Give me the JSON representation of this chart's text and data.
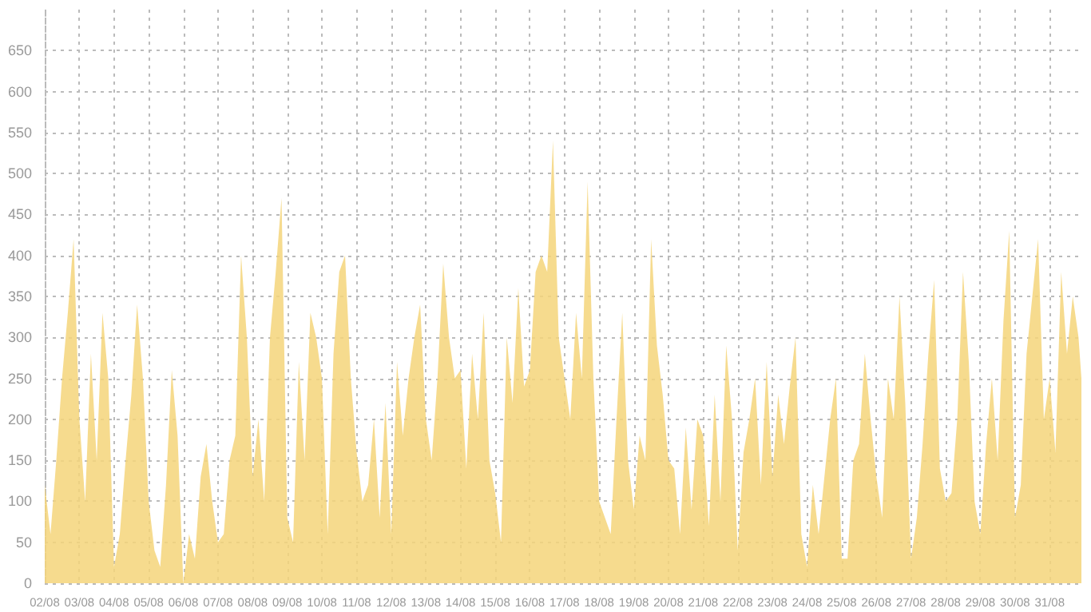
{
  "chart_data": {
    "type": "area",
    "grid": true,
    "marker": "none",
    "xlim": [
      "--08-02T00:00",
      "--08-31T22:00"
    ],
    "xticks": [
      {
        "value": "--08-02",
        "label": "02/08"
      },
      {
        "value": "--08-03",
        "label": "03/08"
      },
      {
        "value": "--08-04",
        "label": "04/08"
      },
      {
        "value": "--08-05",
        "label": "05/08"
      },
      {
        "value": "--08-06",
        "label": "06/08"
      },
      {
        "value": "--08-07",
        "label": "07/08"
      },
      {
        "value": "--08-08",
        "label": "08/08"
      },
      {
        "value": "--08-09",
        "label": "09/08"
      },
      {
        "value": "--08-10",
        "label": "10/08"
      },
      {
        "value": "--08-11",
        "label": "11/08"
      },
      {
        "value": "--08-12",
        "label": "12/08"
      },
      {
        "value": "--08-13",
        "label": "13/08"
      },
      {
        "value": "--08-14",
        "label": "14/08"
      },
      {
        "value": "--08-15",
        "label": "15/08"
      },
      {
        "value": "--08-16",
        "label": "16/08"
      },
      {
        "value": "--08-17",
        "label": "17/08"
      },
      {
        "value": "--08-18",
        "label": "18/08"
      },
      {
        "value": "--08-19",
        "label": "19/08"
      },
      {
        "value": "--08-20",
        "label": "20/08"
      },
      {
        "value": "--08-21",
        "label": "21/08"
      },
      {
        "value": "--08-22",
        "label": "22/08"
      },
      {
        "value": "--08-23",
        "label": "23/08"
      },
      {
        "value": "--08-24",
        "label": "24/08"
      },
      {
        "value": "--08-25",
        "label": "25/08"
      },
      {
        "value": "--08-26",
        "label": "26/08"
      },
      {
        "value": "--08-27",
        "label": "27/08"
      },
      {
        "value": "--08-28",
        "label": "28/08"
      },
      {
        "value": "--08-29",
        "label": "29/08"
      },
      {
        "value": "--08-30",
        "label": "30/08"
      },
      {
        "value": "--08-31",
        "label": "31/08"
      }
    ],
    "ylim": [
      0,
      700
    ],
    "yticks": [
      0,
      50,
      100,
      150,
      200,
      250,
      300,
      350,
      400,
      450,
      500,
      550,
      600,
      650
    ],
    "series": [
      {
        "color": "#f5d57a",
        "x": [
          "--08-02T00:00",
          "--08-02T04:00",
          "--08-02T08:00",
          "--08-02T12:00",
          "--08-02T16:00",
          "--08-02T20:00",
          "--08-03T00:00",
          "--08-03T04:00",
          "--08-03T08:00",
          "--08-03T12:00",
          "--08-03T16:00",
          "--08-03T20:00",
          "--08-04T00:00",
          "--08-04T04:00",
          "--08-04T08:00",
          "--08-04T12:00",
          "--08-04T16:00",
          "--08-04T20:00",
          "--08-05T00:00",
          "--08-05T04:00",
          "--08-05T08:00",
          "--08-05T12:00",
          "--08-05T16:00",
          "--08-05T20:00",
          "--08-06T00:00",
          "--08-06T04:00",
          "--08-06T08:00",
          "--08-06T12:00",
          "--08-06T16:00",
          "--08-06T20:00",
          "--08-07T00:00",
          "--08-07T04:00",
          "--08-07T08:00",
          "--08-07T12:00",
          "--08-07T16:00",
          "--08-07T20:00",
          "--08-08T00:00",
          "--08-08T04:00",
          "--08-08T08:00",
          "--08-08T12:00",
          "--08-08T16:00",
          "--08-08T20:00",
          "--08-09T00:00",
          "--08-09T04:00",
          "--08-09T08:00",
          "--08-09T12:00",
          "--08-09T16:00",
          "--08-09T20:00",
          "--08-10T00:00",
          "--08-10T04:00",
          "--08-10T08:00",
          "--08-10T12:00",
          "--08-10T16:00",
          "--08-10T20:00",
          "--08-11T00:00",
          "--08-11T04:00",
          "--08-11T08:00",
          "--08-11T12:00",
          "--08-11T16:00",
          "--08-11T20:00",
          "--08-12T00:00",
          "--08-12T04:00",
          "--08-12T08:00",
          "--08-12T12:00",
          "--08-12T16:00",
          "--08-12T20:00",
          "--08-13T00:00",
          "--08-13T04:00",
          "--08-13T08:00",
          "--08-13T12:00",
          "--08-13T16:00",
          "--08-13T20:00",
          "--08-14T00:00",
          "--08-14T04:00",
          "--08-14T08:00",
          "--08-14T12:00",
          "--08-14T16:00",
          "--08-14T20:00",
          "--08-15T00:00",
          "--08-15T04:00",
          "--08-15T08:00",
          "--08-15T12:00",
          "--08-15T16:00",
          "--08-15T20:00",
          "--08-16T00:00",
          "--08-16T04:00",
          "--08-16T08:00",
          "--08-16T12:00",
          "--08-16T16:00",
          "--08-16T20:00",
          "--08-17T00:00",
          "--08-17T04:00",
          "--08-17T08:00",
          "--08-17T12:00",
          "--08-17T16:00",
          "--08-17T20:00",
          "--08-18T00:00",
          "--08-18T04:00",
          "--08-18T08:00",
          "--08-18T12:00",
          "--08-18T16:00",
          "--08-18T20:00",
          "--08-19T00:00",
          "--08-19T04:00",
          "--08-19T08:00",
          "--08-19T12:00",
          "--08-19T16:00",
          "--08-19T20:00",
          "--08-20T00:00",
          "--08-20T04:00",
          "--08-20T08:00",
          "--08-20T12:00",
          "--08-20T16:00",
          "--08-20T20:00",
          "--08-21T00:00",
          "--08-21T04:00",
          "--08-21T08:00",
          "--08-21T12:00",
          "--08-21T16:00",
          "--08-21T20:00",
          "--08-22T00:00",
          "--08-22T04:00",
          "--08-22T08:00",
          "--08-22T12:00",
          "--08-22T16:00",
          "--08-22T20:00",
          "--08-23T00:00",
          "--08-23T04:00",
          "--08-23T08:00",
          "--08-23T12:00",
          "--08-23T16:00",
          "--08-23T20:00",
          "--08-24T00:00",
          "--08-24T04:00",
          "--08-24T08:00",
          "--08-24T12:00",
          "--08-24T16:00",
          "--08-24T20:00",
          "--08-25T00:00",
          "--08-25T04:00",
          "--08-25T08:00",
          "--08-25T12:00",
          "--08-25T16:00",
          "--08-25T20:00",
          "--08-26T00:00",
          "--08-26T04:00",
          "--08-26T08:00",
          "--08-26T12:00",
          "--08-26T16:00",
          "--08-26T20:00",
          "--08-27T00:00",
          "--08-27T04:00",
          "--08-27T08:00",
          "--08-27T12:00",
          "--08-27T16:00",
          "--08-27T20:00",
          "--08-28T00:00",
          "--08-28T04:00",
          "--08-28T08:00",
          "--08-28T12:00",
          "--08-28T16:00",
          "--08-28T20:00",
          "--08-29T00:00",
          "--08-29T04:00",
          "--08-29T08:00",
          "--08-29T12:00",
          "--08-29T16:00",
          "--08-29T20:00",
          "--08-30T00:00",
          "--08-30T04:00",
          "--08-30T08:00",
          "--08-30T12:00",
          "--08-30T16:00",
          "--08-30T20:00",
          "--08-31T00:00",
          "--08-31T04:00",
          "--08-31T08:00",
          "--08-31T12:00",
          "--08-31T16:00",
          "--08-31T20:00",
          "--08-31T22:00"
        ],
        "values": [
          120,
          60,
          150,
          250,
          330,
          420,
          200,
          100,
          280,
          150,
          330,
          250,
          20,
          60,
          150,
          230,
          340,
          250,
          100,
          40,
          20,
          120,
          260,
          180,
          0,
          60,
          30,
          130,
          170,
          100,
          50,
          60,
          150,
          180,
          400,
          300,
          130,
          200,
          100,
          300,
          380,
          470,
          80,
          50,
          270,
          150,
          330,
          300,
          250,
          60,
          280,
          380,
          400,
          250,
          160,
          100,
          120,
          200,
          80,
          220,
          60,
          270,
          180,
          250,
          300,
          340,
          200,
          150,
          250,
          390,
          300,
          250,
          260,
          140,
          280,
          200,
          330,
          150,
          110,
          50,
          300,
          220,
          360,
          240,
          260,
          380,
          400,
          380,
          540,
          300,
          250,
          200,
          330,
          250,
          490,
          250,
          100,
          80,
          60,
          200,
          330,
          150,
          90,
          180,
          150,
          420,
          290,
          230,
          150,
          140,
          60,
          190,
          90,
          200,
          180,
          70,
          230,
          100,
          290,
          200,
          40,
          160,
          200,
          250,
          120,
          270,
          130,
          230,
          170,
          240,
          300,
          60,
          20,
          120,
          60,
          130,
          200,
          250,
          30,
          30,
          150,
          170,
          280,
          200,
          130,
          80,
          250,
          200,
          350,
          220,
          30,
          80,
          170,
          280,
          370,
          140,
          100,
          110,
          200,
          380,
          270,
          100,
          60,
          170,
          250,
          150,
          320,
          430,
          80,
          120,
          280,
          350,
          420,
          200,
          250,
          160,
          380,
          280,
          350,
          300,
          250
        ]
      }
    ]
  }
}
